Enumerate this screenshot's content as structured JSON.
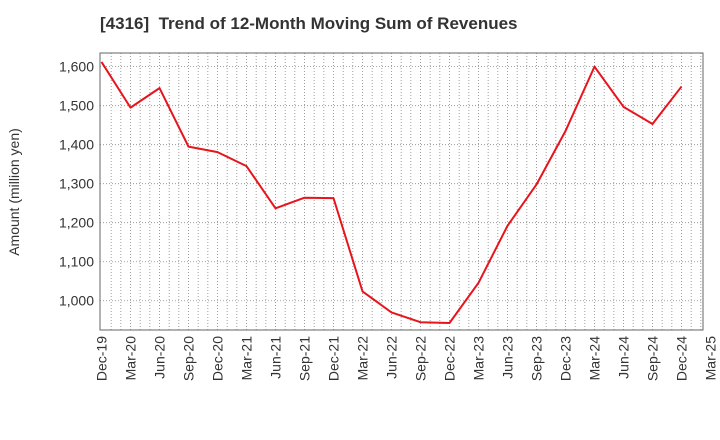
{
  "chart_data": {
    "type": "line",
    "title": "[4316]  Trend of 12-Month Moving Sum of Revenues",
    "xlabel": "",
    "ylabel": "Amount (million yen)",
    "x_tick_labels": [
      "Dec-19",
      "Mar-20",
      "Jun-20",
      "Sep-20",
      "Dec-20",
      "Mar-21",
      "Jun-21",
      "Sep-21",
      "Dec-21",
      "Mar-22",
      "Jun-22",
      "Sep-22",
      "Dec-22",
      "Mar-23",
      "Jun-23",
      "Sep-23",
      "Dec-23",
      "Mar-24",
      "Jun-24",
      "Sep-24",
      "Dec-24",
      "Mar-25"
    ],
    "y_ticks": [
      1000,
      1100,
      1200,
      1300,
      1400,
      1500,
      1600
    ],
    "y_tick_labels": [
      "1,000",
      "1,100",
      "1,200",
      "1,300",
      "1,400",
      "1,500",
      "1,600"
    ],
    "ylim": [
      925,
      1635
    ],
    "grid": true,
    "series": [
      {
        "color": "#e8141c",
        "x": [
          "Dec-19",
          "Mar-20",
          "Jun-20",
          "Sep-20",
          "Dec-20",
          "Mar-21",
          "Jun-21",
          "Sep-21",
          "Dec-21",
          "Mar-22",
          "Jun-22",
          "Sep-22",
          "Dec-22",
          "Mar-23",
          "Jun-23",
          "Sep-23",
          "Dec-23",
          "Mar-24",
          "Jun-24",
          "Sep-24",
          "Dec-24"
        ],
        "values": [
          1612,
          1495,
          1545,
          1395,
          1381,
          1345,
          1237,
          1264,
          1263,
          1024,
          970,
          945,
          943,
          1046,
          1192,
          1298,
          1435,
          1600,
          1497,
          1453,
          1549
        ]
      }
    ]
  }
}
